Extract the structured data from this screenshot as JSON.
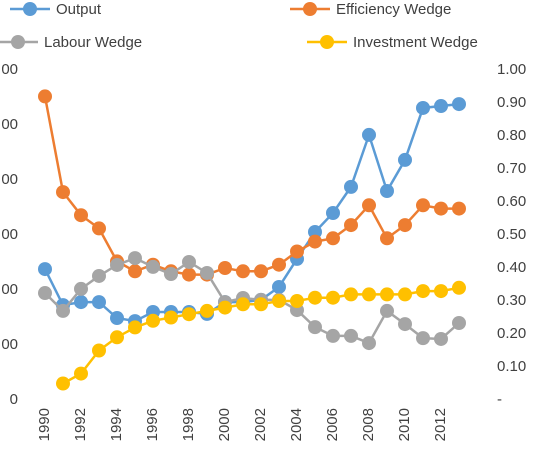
{
  "chart_data": {
    "type": "line",
    "categories": [
      1990,
      null,
      1992,
      null,
      1994,
      null,
      1996,
      null,
      1998,
      null,
      2000,
      null,
      2002,
      null,
      2004,
      null,
      2006,
      null,
      2008,
      null,
      2010,
      null,
      2012,
      null
    ],
    "series": [
      {
        "name": "Output",
        "color": "#5b9bd5",
        "axis": "y",
        "values": [
          476,
          345,
          356,
          356,
          298,
          287,
          320,
          320,
          320,
          313,
          356,
          356,
          364,
          411,
          513,
          611,
          680,
          775,
          964,
          760,
          873,
          1062,
          1069,
          1076
        ]
      },
      {
        "name": "Efficiency Wedge",
        "color": "#ed7d31",
        "axis": "y2",
        "values": [
          0.92,
          0.63,
          0.56,
          0.52,
          0.42,
          0.39,
          0.41,
          0.39,
          0.38,
          0.38,
          0.4,
          0.39,
          0.39,
          0.41,
          0.45,
          0.48,
          0.49,
          0.53,
          0.59,
          0.49,
          0.53,
          0.59,
          0.58,
          0.58
        ]
      },
      {
        "name": "Labour Wedge",
        "color": "#a5a5a5",
        "axis": "y",
        "values": [
          389,
          324,
          404,
          451,
          491,
          516,
          484,
          458,
          502,
          462,
          356,
          371,
          364,
          364,
          327,
          265,
          233,
          233,
          207,
          324,
          276,
          225,
          222,
          280
        ]
      },
      {
        "name": "Investment Wedge",
        "color": "#ffc000",
        "axis": "y2",
        "values": [
          null,
          0.05,
          0.08,
          0.15,
          0.19,
          0.22,
          0.24,
          0.25,
          0.26,
          0.27,
          0.28,
          0.29,
          0.29,
          0.3,
          0.3,
          0.31,
          0.31,
          0.32,
          0.32,
          0.32,
          0.32,
          0.33,
          0.33,
          0.34
        ]
      }
    ],
    "ylim": [
      0,
      1200
    ],
    "yticks": [
      0,
      {
        "value": 200,
        "label": "00"
      },
      {
        "value": 400,
        "label": "00"
      },
      {
        "value": 600,
        "label": "00"
      },
      {
        "value": 800,
        "label": "00"
      },
      {
        "value": 1000,
        "label": "00"
      },
      {
        "value": 1200,
        "label": "00"
      }
    ],
    "y2lim": [
      0,
      1
    ],
    "y2ticks": [
      {
        "value": 0,
        "label": "-"
      },
      {
        "value": 0.1,
        "label": "0.10"
      },
      {
        "value": 0.2,
        "label": "0.20"
      },
      {
        "value": 0.3,
        "label": "0.30"
      },
      {
        "value": 0.4,
        "label": "0.40"
      },
      {
        "value": 0.5,
        "label": "0.50"
      },
      {
        "value": 0.6,
        "label": "0.60"
      },
      {
        "value": 0.7,
        "label": "0.70"
      },
      {
        "value": 0.8,
        "label": "0.80"
      },
      {
        "value": 0.9,
        "label": "0.90"
      },
      {
        "value": 1,
        "label": "1.00"
      }
    ],
    "grid": false
  }
}
